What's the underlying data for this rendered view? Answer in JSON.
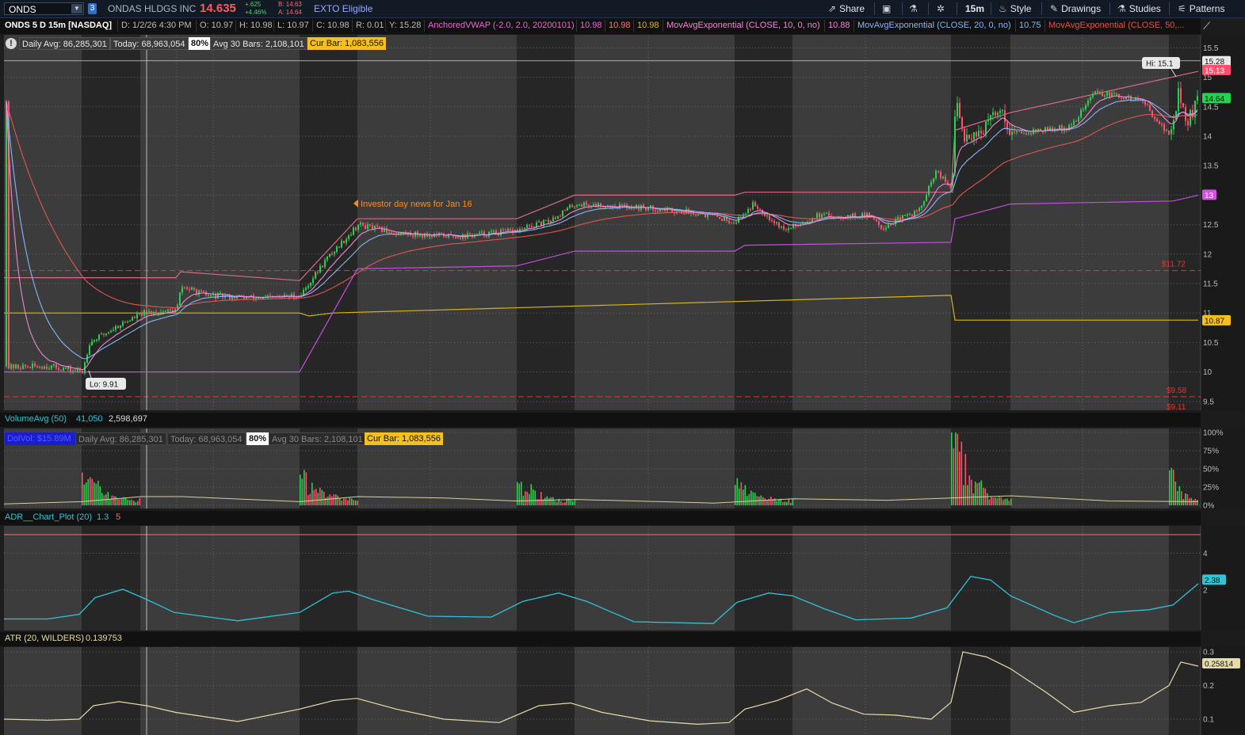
{
  "toolbar": {
    "symbol": "ONDS",
    "link_group": "3",
    "company": "ONDAS HLDGS INC",
    "last": "14.635",
    "change": "+.625",
    "change_pct": "+4.46%",
    "bid": "B: 14.63",
    "ask": "A: 14.64",
    "exto": "EXTO Eligible",
    "share": "Share",
    "timeframe": "15m",
    "style": "Style",
    "drawings": "Drawings",
    "studies": "Studies",
    "patterns": "Patterns"
  },
  "study_bar": {
    "title": "ONDS 5 D 15m [NASDAQ]",
    "date": "D: 1/2/26 4:30 PM",
    "open": "O: 10.97",
    "high": "H: 10.98",
    "low": "L: 10.97",
    "close": "C: 10.98",
    "range": "R: 0.01",
    "y": "Y: 15.28",
    "vwap_label": "AnchoredVWAP (-2.0, 2.0, 20200101)",
    "vwap_v1": "10.98",
    "vwap_v2": "10.98",
    "vwap_v3": "10.98",
    "ema10_label": "MovAvgExponential (CLOSE, 10, 0, no)",
    "ema10_value": "10.88",
    "ema20_label": "MovAvgExponential (CLOSE, 20, 0, no)",
    "ema20_value": "10.75",
    "ema50_label": "MovAvgExponential (CLOSE, 50,..."
  },
  "info_bar": {
    "daily_avg": "Daily Avg: 86,285,301",
    "today": "Today: 68,963,054",
    "pct": "80%",
    "avg30": "Avg 30 Bars: 2,108,101",
    "cur_bar": "Cur Bar: 1,083,556",
    "dolvol": "DolVol: $15.89M"
  },
  "main_chart": {
    "annotation": "Investor day news for Jan 16",
    "hi_label": "Hi: 15.1",
    "lo_label": "Lo: 9.91",
    "price_ticks": [
      "15.5",
      "15",
      "14.5",
      "14",
      "13.5",
      "13",
      "12.5",
      "12",
      "11.5",
      "11",
      "10.5",
      "10",
      "9.5"
    ],
    "tag_current": "14.64",
    "tag_y": "15.28",
    "tag_hi": "15.13",
    "tag_vwap_upper": "13",
    "tag_vwap": "10.87",
    "line_1172": "$11.72",
    "line_958": "$9.58",
    "line_911": "$9.11"
  },
  "volume_pane": {
    "label": "VolumeAvg (50)",
    "v1": "41,050",
    "v2": "2,598,697",
    "ticks": [
      "100%",
      "75%",
      "50%",
      "25%",
      "0%"
    ]
  },
  "adr_pane": {
    "label": "ADR__Chart_Plot (20)",
    "v1": "1.3",
    "v2": "5",
    "ticks": [
      "4",
      "2"
    ],
    "tag": "2.38"
  },
  "atr_pane": {
    "label": "ATR (20, WILDERS)",
    "value": "0.139753",
    "ticks": [
      "0.3",
      "0.2",
      "0.1"
    ],
    "tag": "0.25814"
  },
  "colors": {
    "up": "#26d14d",
    "down": "#ff4f6d",
    "vwap": "#d7b515",
    "vwap_band": "#c44ee0",
    "ema10": "#e98ad6",
    "ema20": "#8ab4f8",
    "ema50": "#e05555",
    "adr": "#2ec4d6",
    "atr": "#e6dcaa"
  }
}
